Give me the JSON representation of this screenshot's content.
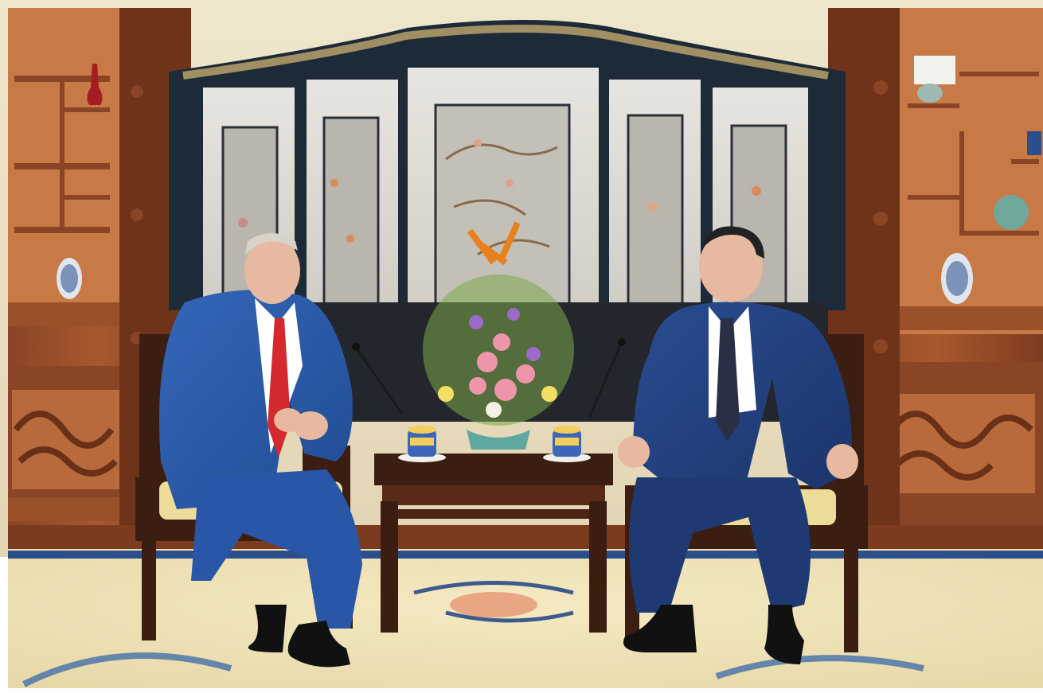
{
  "scene": {
    "palette": {
      "wall": "#eadfc4",
      "wood": "#7a3e22",
      "wood_dark": "#3c1d12",
      "shelf": "#b86a3c",
      "screen_frame": "#1d2a38",
      "panel": "#d9d6cf",
      "carpet": "#efe3b8",
      "carpet_border": "#2c4f8c",
      "suit": "#2a4f9a",
      "suit_dark": "#1f3a72",
      "tie_red": "#d42a2f",
      "tie_dark": "#2b2f46",
      "skin": "#e6b9a0",
      "cushion": "#ecdc9a"
    }
  }
}
